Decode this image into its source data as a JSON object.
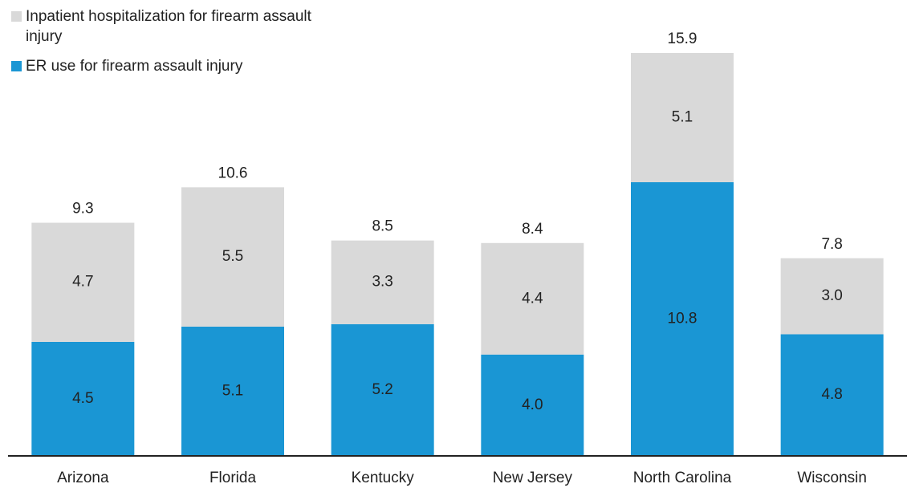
{
  "chart_data": {
    "type": "stacked-bar",
    "categories": [
      "Arizona",
      "Florida",
      "Kentucky",
      "New Jersey",
      "North Carolina",
      "Wisconsin"
    ],
    "series": [
      {
        "name": "ER use for firearm assault injury",
        "color": "#1a96d4",
        "values": [
          4.5,
          5.1,
          5.2,
          4.0,
          10.8,
          4.8
        ],
        "value_labels": [
          "4.5",
          "5.1",
          "5.2",
          "4.0",
          "10.8",
          "4.8"
        ]
      },
      {
        "name": "Inpatient hospitalization for firearm assault injury",
        "color": "#d9d9d9",
        "values": [
          4.7,
          5.5,
          3.3,
          4.4,
          5.1,
          3.0
        ],
        "value_labels": [
          "4.7",
          "5.5",
          "3.3",
          "4.4",
          "5.1",
          "3.0"
        ]
      }
    ],
    "totals": [
      9.3,
      10.6,
      8.5,
      8.4,
      15.9,
      7.8
    ]
  }
}
